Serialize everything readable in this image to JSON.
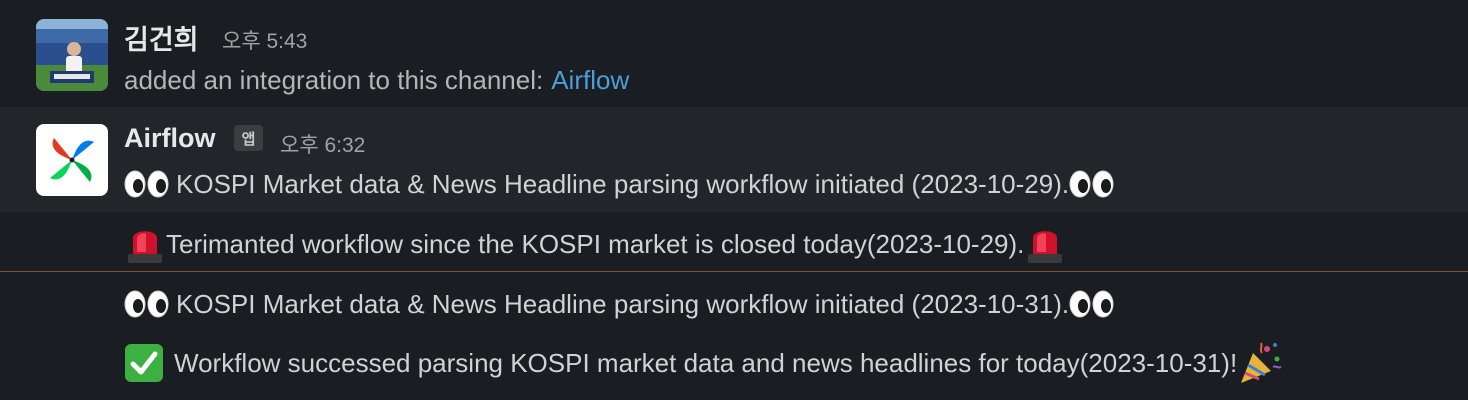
{
  "messages": [
    {
      "author": "김건희",
      "time": "오후 5:43",
      "text": "added an integration to this channel:",
      "link": "Airflow"
    },
    {
      "author": "Airflow",
      "badge": "앱",
      "time": "오후 6:32",
      "lines": [
        "KOSPI Market data & News Headline parsing workflow initiated (2023-10-29).",
        "Terimanted workflow since the KOSPI market is closed today(2023-10-29).",
        "KOSPI Market data & News Headline parsing workflow initiated (2023-10-31).",
        "Workflow successed parsing KOSPI market data and news headlines for today(2023-10-31)!"
      ]
    }
  ],
  "colors": {
    "background": "#1a1d21",
    "hover_background": "#222529",
    "link": "#4a9fd8",
    "new_divider": "#8a4a2e"
  },
  "icons": {
    "eyes": "eyes-emoji-icon",
    "siren": "rotating-light-emoji-icon",
    "check": "white-check-mark-emoji-icon",
    "party": "party-popper-emoji-icon"
  }
}
